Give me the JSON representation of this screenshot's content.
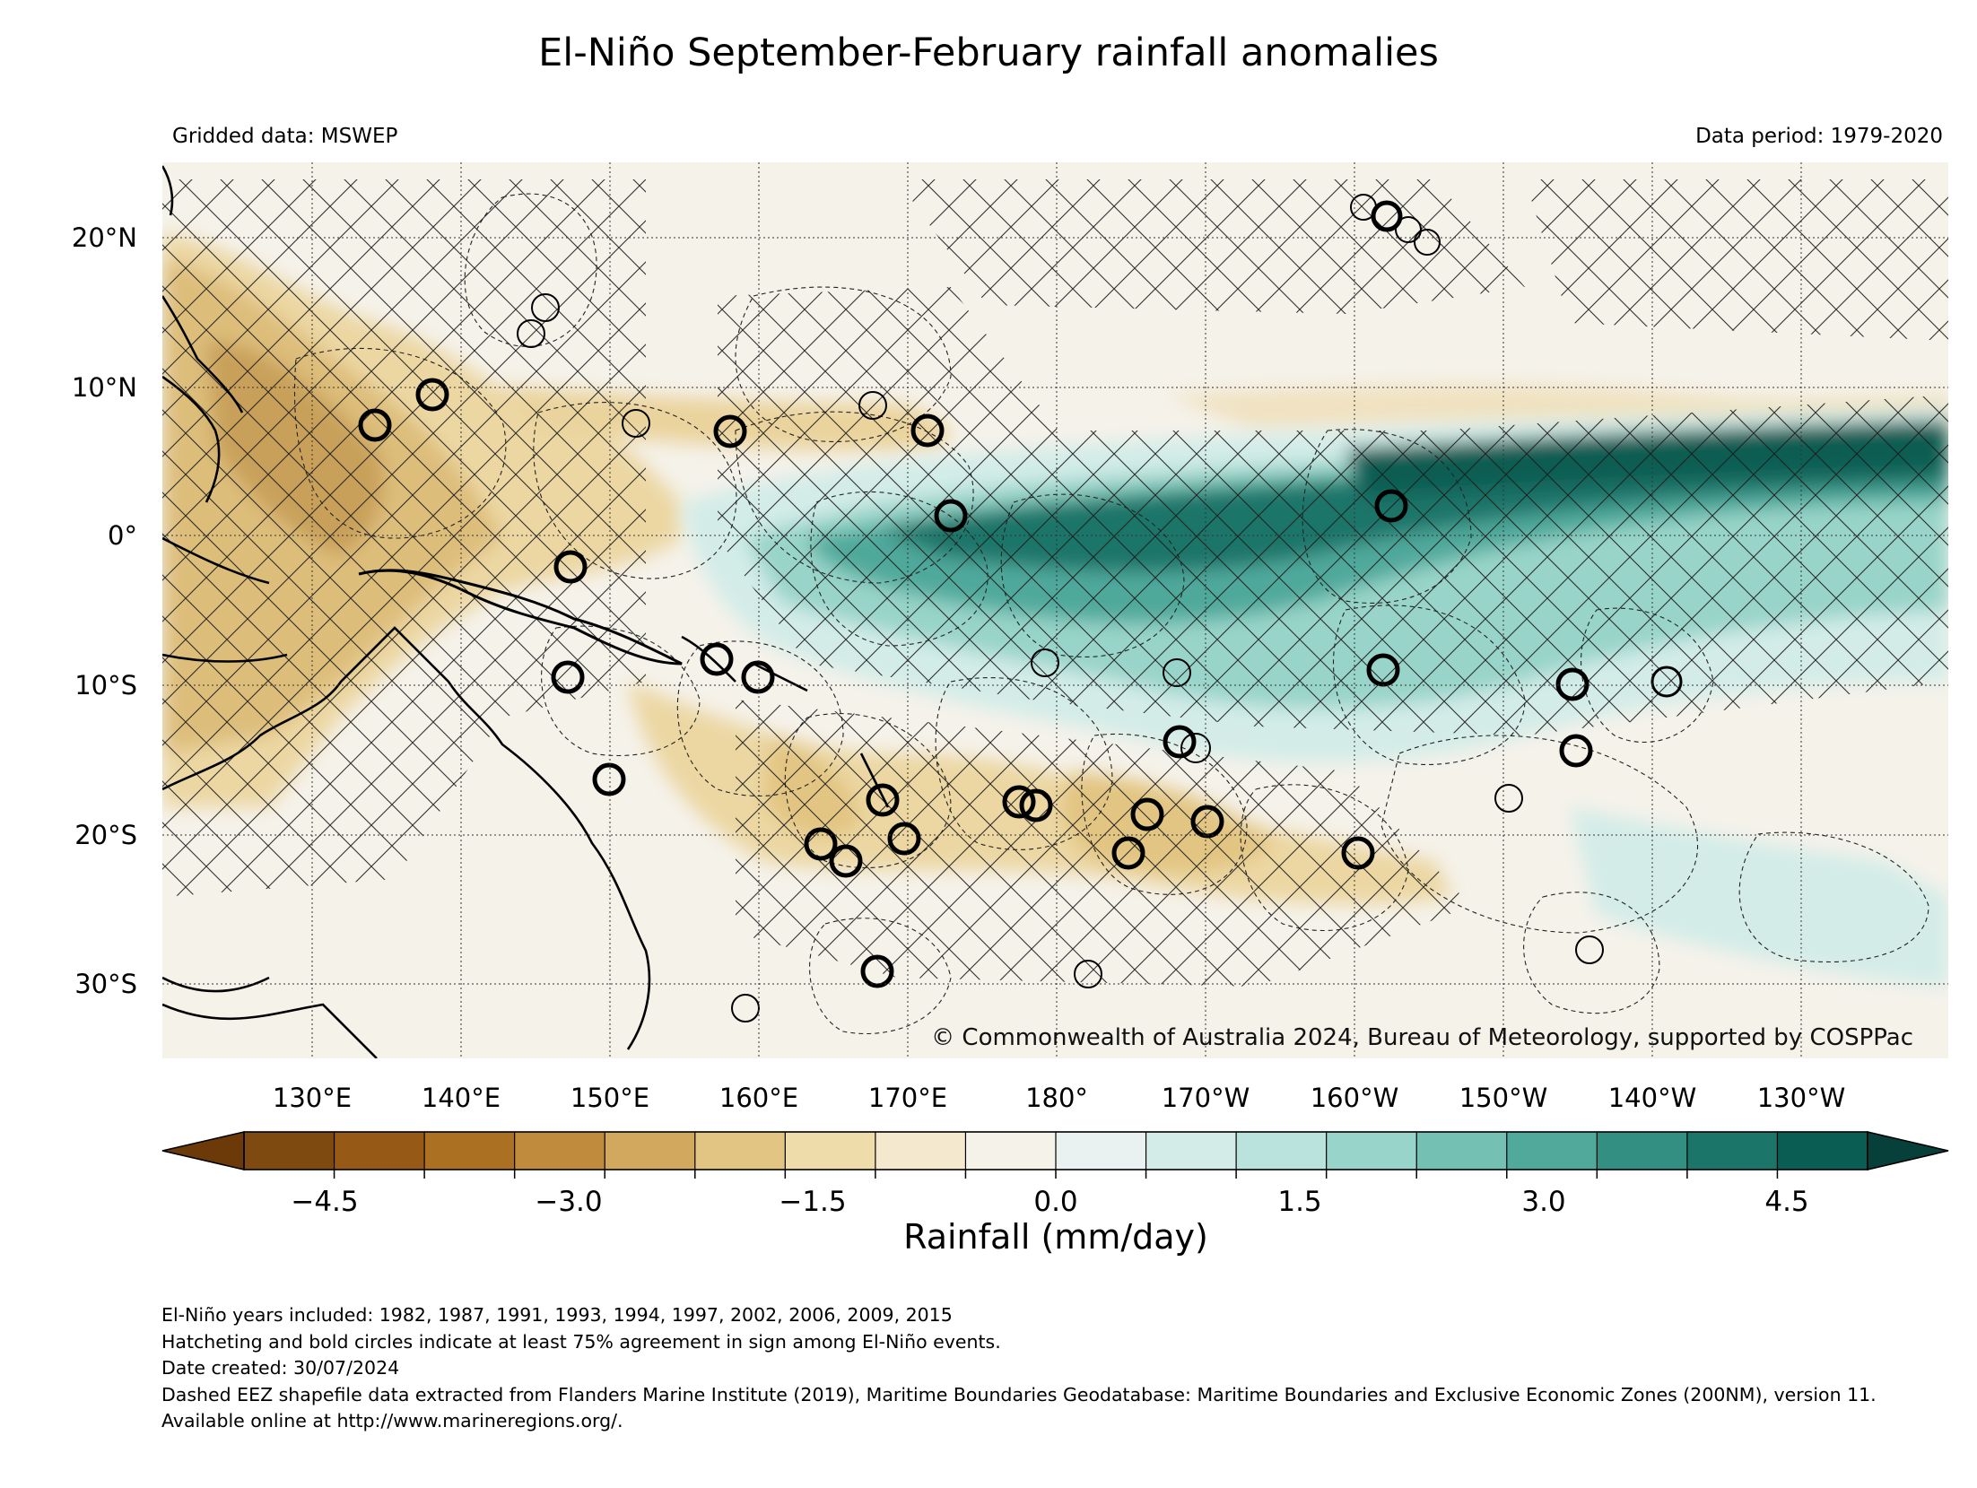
{
  "header": {
    "title": "El-Niño September-February rainfall anomalies",
    "left_note": "Gridded data: MSWEP",
    "right_note": "Data period: 1979-2020"
  },
  "map": {
    "copyright": "© Commonwealth of Australia 2024, Bureau of Meteorology, supported by COSPPac",
    "lat_labels": [
      "20°N",
      "10°N",
      "0°",
      "10°S",
      "20°S",
      "30°S"
    ],
    "lon_labels": [
      "130°E",
      "140°E",
      "150°E",
      "160°E",
      "170°E",
      "180°",
      "170°W",
      "160°W",
      "150°W",
      "140°W",
      "130°W"
    ]
  },
  "colorbar": {
    "label": "Rainfall (mm/day)",
    "ticks": [
      "−4.5",
      "−3.0",
      "−1.5",
      "0.0",
      "1.5",
      "3.0",
      "4.5"
    ],
    "colors": [
      "#7f4a10",
      "#975a16",
      "#ac7022",
      "#c08b3c",
      "#d2a85e",
      "#e2c582",
      "#eedcab",
      "#f4e9cf",
      "#f5f2ea",
      "#e9f2f1",
      "#d3ece8",
      "#b9e3dc",
      "#98d4c9",
      "#74c0b2",
      "#50a99b",
      "#348f83",
      "#1b7569",
      "#0a5d52"
    ],
    "under_color": "#6b3a08",
    "over_color": "#073f3a"
  },
  "footnotes": {
    "years": "El-Niño years included: 1982, 1987, 1991, 1993, 1994, 1997, 2002, 2006, 2009, 2015",
    "hatching": "Hatcheting and bold circles indicate at least 75% agreement in sign among El-Niño events.",
    "date": "Date created: 30/07/2024",
    "source": "Dashed EEZ shapefile data extracted from Flanders Marine Institute (2019), Maritime Boundaries Geodatabase: Maritime Boundaries and Exclusive Economic Zones (200NM), version 11. Available online at http://www.marineregions.org/."
  }
}
